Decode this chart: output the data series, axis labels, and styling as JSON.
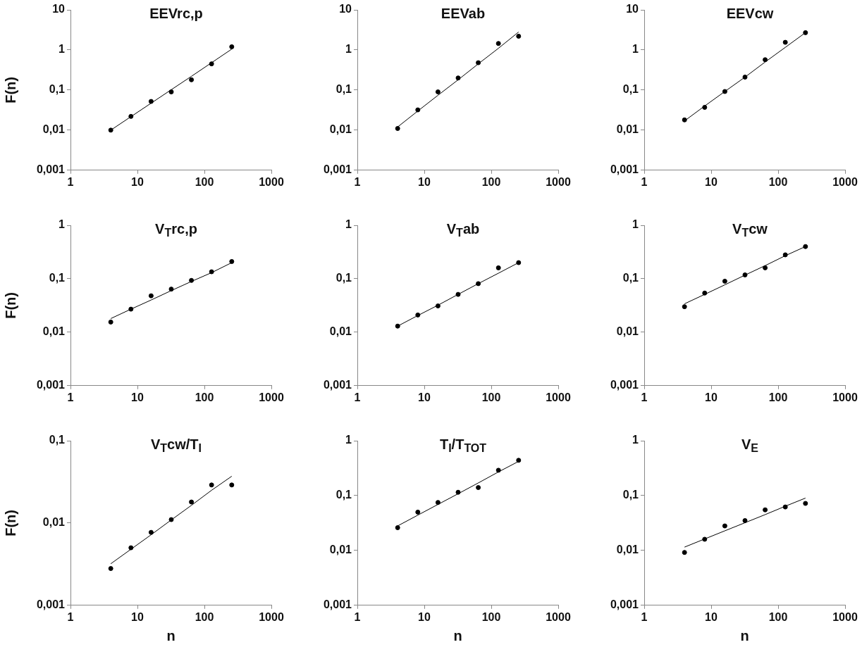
{
  "chart_data": [
    {
      "type": "scatter",
      "title": "EEVrc,p",
      "ylabel": "F(n)",
      "log": "xy",
      "xlim": [
        1,
        1000
      ],
      "xticks": [
        1,
        10,
        100,
        1000
      ],
      "ylim": [
        0.001,
        10
      ],
      "yticks": [
        {
          "value": 0.001,
          "label": "0,001"
        },
        {
          "value": 0.01,
          "label": "0,01"
        },
        {
          "value": 0.1,
          "label": "0,1"
        },
        {
          "value": 1,
          "label": "1"
        },
        {
          "value": 10,
          "label": "10"
        }
      ],
      "marker": "circle",
      "grid": false,
      "legend": false,
      "x": [
        4,
        8,
        16,
        32,
        64,
        128,
        256
      ],
      "series": [
        {
          "color": "#000000",
          "values": [
            0.01,
            0.022,
            0.052,
            0.09,
            0.18,
            0.45,
            1.2
          ]
        },
        {
          "type": "line",
          "marker": "none",
          "color": "#000000",
          "values": [
            0.01,
            0.0217,
            0.047,
            0.102,
            0.22,
            0.48,
            1.05
          ]
        }
      ]
    },
    {
      "type": "scatter",
      "title": "EEVab",
      "log": "xy",
      "xlim": [
        1,
        1000
      ],
      "xticks": [
        1,
        10,
        100,
        1000
      ],
      "ylim": [
        0.001,
        10
      ],
      "yticks": [
        {
          "value": 0.001,
          "label": "0,001"
        },
        {
          "value": 0.01,
          "label": "0,01"
        },
        {
          "value": 0.1,
          "label": "0,1"
        },
        {
          "value": 1,
          "label": "1"
        },
        {
          "value": 10,
          "label": "10"
        }
      ],
      "marker": "circle",
      "grid": false,
      "legend": false,
      "x": [
        4,
        8,
        16,
        32,
        64,
        128,
        256
      ],
      "series": [
        {
          "color": "#000000",
          "values": [
            0.011,
            0.032,
            0.09,
            0.2,
            0.48,
            1.45,
            2.2
          ]
        },
        {
          "type": "line",
          "marker": "none",
          "color": "#000000",
          "values": [
            0.012,
            0.03,
            0.074,
            0.18,
            0.45,
            1.1,
            2.8
          ]
        }
      ]
    },
    {
      "type": "scatter",
      "title": "EEVcw",
      "log": "xy",
      "xlim": [
        1,
        1000
      ],
      "xticks": [
        1,
        10,
        100,
        1000
      ],
      "ylim": [
        0.001,
        10
      ],
      "yticks": [
        {
          "value": 0.001,
          "label": "0,001"
        },
        {
          "value": 0.01,
          "label": "0,01"
        },
        {
          "value": 0.1,
          "label": "0,1"
        },
        {
          "value": 1,
          "label": "1"
        },
        {
          "value": 10,
          "label": "10"
        }
      ],
      "marker": "circle",
      "grid": false,
      "legend": false,
      "x": [
        4,
        8,
        16,
        32,
        64,
        128,
        256
      ],
      "series": [
        {
          "color": "#000000",
          "values": [
            0.018,
            0.037,
            0.092,
            0.21,
            0.57,
            1.55,
            2.7
          ]
        },
        {
          "type": "line",
          "marker": "none",
          "color": "#000000",
          "values": [
            0.017,
            0.04,
            0.092,
            0.21,
            0.5,
            1.16,
            2.7
          ]
        }
      ]
    },
    {
      "type": "scatter",
      "title": "V$_{T}$rc,p",
      "ylabel": "F(n)",
      "log": "xy",
      "xlim": [
        1,
        1000
      ],
      "xticks": [
        1,
        10,
        100,
        1000
      ],
      "ylim": [
        0.001,
        1
      ],
      "yticks": [
        {
          "value": 0.001,
          "label": "0,001"
        },
        {
          "value": 0.01,
          "label": "0,01"
        },
        {
          "value": 0.1,
          "label": "0,1"
        },
        {
          "value": 1,
          "label": "1"
        }
      ],
      "marker": "circle",
      "grid": false,
      "legend": false,
      "x": [
        4,
        8,
        16,
        32,
        64,
        128,
        256
      ],
      "series": [
        {
          "color": "#000000",
          "values": [
            0.0155,
            0.027,
            0.048,
            0.064,
            0.093,
            0.135,
            0.21
          ]
        },
        {
          "type": "line",
          "marker": "none",
          "color": "#000000",
          "values": [
            0.018,
            0.027,
            0.04,
            0.06,
            0.089,
            0.13,
            0.2
          ]
        }
      ]
    },
    {
      "type": "scatter",
      "title": "V$_{T}$ab",
      "log": "xy",
      "xlim": [
        1,
        1000
      ],
      "xticks": [
        1,
        10,
        100,
        1000
      ],
      "ylim": [
        0.001,
        1
      ],
      "yticks": [
        {
          "value": 0.001,
          "label": "0,001"
        },
        {
          "value": 0.01,
          "label": "0,01"
        },
        {
          "value": 0.1,
          "label": "0,1"
        },
        {
          "value": 1,
          "label": "1"
        }
      ],
      "marker": "circle",
      "grid": false,
      "legend": false,
      "x": [
        4,
        8,
        16,
        32,
        64,
        128,
        256
      ],
      "series": [
        {
          "color": "#000000",
          "values": [
            0.013,
            0.021,
            0.031,
            0.051,
            0.081,
            0.16,
            0.2
          ]
        },
        {
          "type": "line",
          "marker": "none",
          "color": "#000000",
          "values": [
            0.013,
            0.0205,
            0.032,
            0.051,
            0.081,
            0.127,
            0.2
          ]
        }
      ]
    },
    {
      "type": "scatter",
      "title": "V$_{T}$cw",
      "log": "xy",
      "xlim": [
        1,
        1000
      ],
      "xticks": [
        1,
        10,
        100,
        1000
      ],
      "ylim": [
        0.001,
        1
      ],
      "yticks": [
        {
          "value": 0.001,
          "label": "0,001"
        },
        {
          "value": 0.01,
          "label": "0,01"
        },
        {
          "value": 0.1,
          "label": "0,1"
        },
        {
          "value": 1,
          "label": "1"
        }
      ],
      "marker": "circle",
      "grid": false,
      "legend": false,
      "x": [
        4,
        8,
        16,
        32,
        64,
        128,
        256
      ],
      "series": [
        {
          "color": "#000000",
          "values": [
            0.03,
            0.054,
            0.09,
            0.118,
            0.16,
            0.28,
            0.4
          ]
        },
        {
          "type": "line",
          "marker": "none",
          "color": "#000000",
          "values": [
            0.034,
            0.051,
            0.077,
            0.117,
            0.176,
            0.27,
            0.4
          ]
        }
      ]
    },
    {
      "type": "scatter",
      "title": "V$_{T}$cw/T$_{I}$",
      "ylabel": "F(n)",
      "xlabel": "n",
      "log": "xy",
      "xlim": [
        1,
        1000
      ],
      "xticks": [
        1,
        10,
        100,
        1000
      ],
      "ylim": [
        0.001,
        0.1
      ],
      "yticks": [
        {
          "value": 0.001,
          "label": "0,001"
        },
        {
          "value": 0.01,
          "label": "0,01"
        },
        {
          "value": 0.1,
          "label": "0,1"
        }
      ],
      "marker": "circle",
      "grid": false,
      "legend": false,
      "x": [
        4,
        8,
        16,
        32,
        64,
        128,
        256
      ],
      "series": [
        {
          "color": "#000000",
          "values": [
            0.0028,
            0.005,
            0.0077,
            0.011,
            0.018,
            0.029,
            0.029
          ]
        },
        {
          "type": "line",
          "marker": "none",
          "color": "#000000",
          "values": [
            0.0032,
            0.0048,
            0.0072,
            0.0109,
            0.0164,
            0.025,
            0.037
          ]
        }
      ]
    },
    {
      "type": "scatter",
      "title": "T$_{I}$/T$_{TOT}$",
      "xlabel": "n",
      "log": "xy",
      "xlim": [
        1,
        1000
      ],
      "xticks": [
        1,
        10,
        100,
        1000
      ],
      "ylim": [
        0.001,
        1
      ],
      "yticks": [
        {
          "value": 0.001,
          "label": "0,001"
        },
        {
          "value": 0.01,
          "label": "0,01"
        },
        {
          "value": 0.1,
          "label": "0,1"
        },
        {
          "value": 1,
          "label": "1"
        }
      ],
      "marker": "circle",
      "grid": false,
      "legend": false,
      "x": [
        4,
        8,
        16,
        32,
        64,
        128,
        256
      ],
      "series": [
        {
          "color": "#000000",
          "values": [
            0.026,
            0.05,
            0.075,
            0.115,
            0.14,
            0.29,
            0.44
          ]
        },
        {
          "type": "line",
          "marker": "none",
          "color": "#000000",
          "values": [
            0.028,
            0.044,
            0.069,
            0.108,
            0.17,
            0.27,
            0.42
          ]
        }
      ]
    },
    {
      "type": "scatter",
      "title": "V$_{E}$",
      "xlabel": "n",
      "log": "xy",
      "xlim": [
        1,
        1000
      ],
      "xticks": [
        1,
        10,
        100,
        1000
      ],
      "ylim": [
        0.001,
        1
      ],
      "yticks": [
        {
          "value": 0.001,
          "label": "0,001"
        },
        {
          "value": 0.01,
          "label": "0,01"
        },
        {
          "value": 0.1,
          "label": "0,1"
        },
        {
          "value": 1,
          "label": "1"
        }
      ],
      "marker": "circle",
      "grid": false,
      "legend": false,
      "x": [
        4,
        8,
        16,
        32,
        64,
        128,
        256
      ],
      "series": [
        {
          "color": "#000000",
          "values": [
            0.0092,
            0.016,
            0.028,
            0.035,
            0.055,
            0.062,
            0.072
          ]
        },
        {
          "type": "line",
          "marker": "none",
          "color": "#000000",
          "values": [
            0.0115,
            0.0162,
            0.0228,
            0.032,
            0.045,
            0.064,
            0.09
          ]
        }
      ]
    }
  ]
}
